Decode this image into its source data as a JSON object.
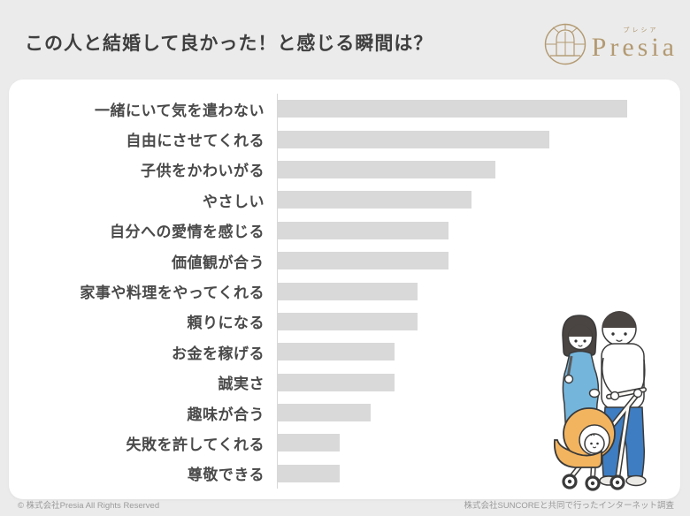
{
  "header": {
    "title": "この人と結婚して良かった！と感じる瞬間は？",
    "logo": {
      "name": "Presia",
      "kana": "プレシア"
    }
  },
  "chart_data": {
    "type": "bar",
    "orientation": "horizontal",
    "title": "この人と結婚して良かった！と感じる瞬間は？",
    "categories": [
      "一緒にいて気を遣わない",
      "自由にさせてくれる",
      "子供をかわいがる",
      "やさしい",
      "自分への愛情を感じる",
      "価値観が合う",
      "家事や料理をやってくれる",
      "頼りになる",
      "お金を稼げる",
      "誠実さ",
      "趣味が合う",
      "失敗を許してくれる",
      "尊敬できる"
    ],
    "values": [
      45,
      35,
      28,
      25,
      22,
      22,
      18,
      18,
      15,
      15,
      12,
      8,
      8
    ],
    "xlim": [
      0,
      45
    ],
    "value_labels_shown": false,
    "gridlines": false,
    "legend": false,
    "bar_color": "#d9d9d9",
    "axis_line_color": "#d8d8d8"
  },
  "footer": {
    "copyright": "© 株式会社Presia All Rights Reserved",
    "survey_credit": "株式会社SUNCOREと共同で行ったインターネット調査"
  },
  "colors": {
    "background": "#ebebeb",
    "card": "#ffffff",
    "title_text": "#3f3f3f",
    "label_text": "#4a4a4a",
    "logo_gold": "#b39a72",
    "footer_text": "#9a9a9a",
    "illustration": {
      "dress_blue": "#74b5dc",
      "pants_blue": "#3e7dc2",
      "stroller_orange": "#f3b45f",
      "outline": "#3a3a3a",
      "hair": "#4a4542",
      "shoe": "#eceae6"
    }
  }
}
